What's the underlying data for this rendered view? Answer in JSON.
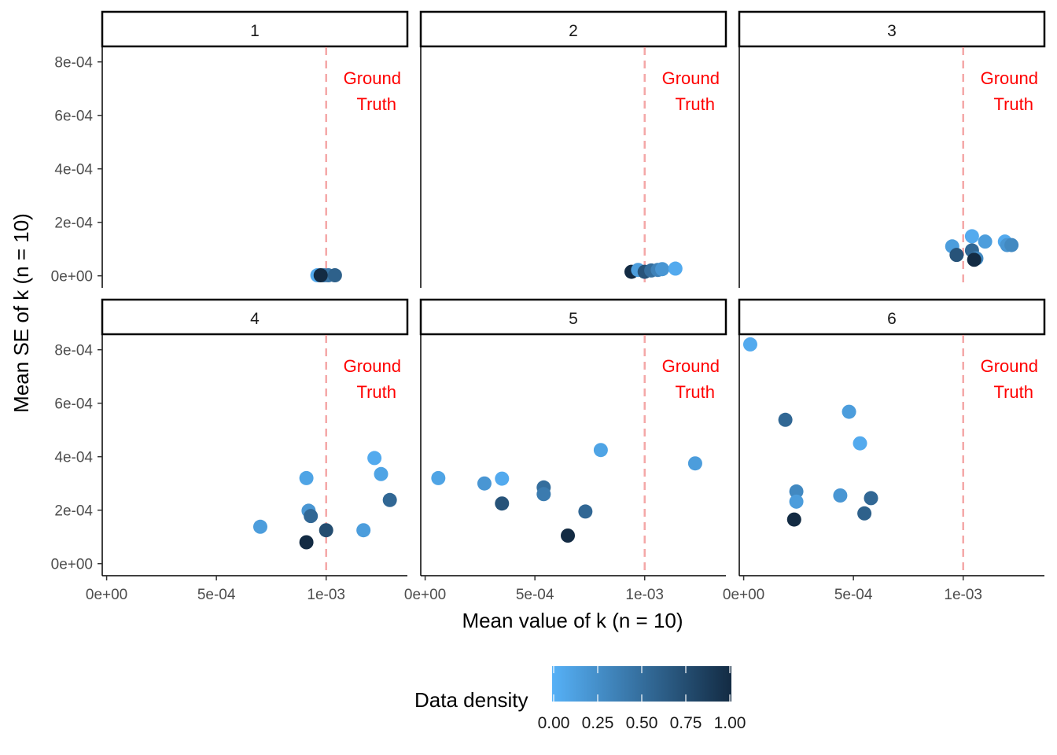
{
  "chart_data": {
    "type": "scatter",
    "facet_layout": "2x3",
    "xlabel": "Mean value of k (n = 10)",
    "ylabel": "Mean SE of k (n = 10)",
    "xlim": [
      -2e-05,
      0.00137
    ],
    "ylim": [
      -4.5e-05,
      0.000855
    ],
    "x_ticks": [
      {
        "value": 0,
        "label": "0e+00"
      },
      {
        "value": 0.0005,
        "label": "5e-04"
      },
      {
        "value": 0.001,
        "label": "1e-03"
      }
    ],
    "y_ticks": [
      {
        "value": 0,
        "label": "0e+00"
      },
      {
        "value": 0.0002,
        "label": "2e-04"
      },
      {
        "value": 0.0004,
        "label": "4e-04"
      },
      {
        "value": 0.0006,
        "label": "6e-04"
      },
      {
        "value": 0.0008,
        "label": "8e-04"
      }
    ],
    "grid": false,
    "reference_line": {
      "x": 0.001,
      "label_line1": "Ground",
      "label_line2": "Truth",
      "color": "#FF0000",
      "line_color": "#F4A7A7"
    },
    "color_scale": {
      "title": "Data density",
      "low": "#56B1F7",
      "high": "#132B43",
      "ticks": [
        "0.00",
        "0.25",
        "0.50",
        "0.75",
        "1.00"
      ],
      "placement": "bottom"
    },
    "facets": [
      {
        "label": "1",
        "points": [
          {
            "x": 0.00096,
            "y": 2e-06,
            "d": 0.05
          },
          {
            "x": 0.00099,
            "y": 2e-06,
            "d": 0.35
          },
          {
            "x": 0.00101,
            "y": 2e-06,
            "d": 0.45
          },
          {
            "x": 0.00104,
            "y": 2e-06,
            "d": 0.6
          },
          {
            "x": 0.000975,
            "y": 2e-06,
            "d": 1.0
          }
        ]
      },
      {
        "label": "2",
        "points": [
          {
            "x": 0.00094,
            "y": 1.5e-05,
            "d": 1.0
          },
          {
            "x": 0.00097,
            "y": 2.2e-05,
            "d": 0.15
          },
          {
            "x": 0.001,
            "y": 1.5e-05,
            "d": 0.7
          },
          {
            "x": 0.00103,
            "y": 2e-05,
            "d": 0.5
          },
          {
            "x": 0.00106,
            "y": 2.2e-05,
            "d": 0.35
          },
          {
            "x": 0.00108,
            "y": 2.5e-05,
            "d": 0.2
          },
          {
            "x": 0.00114,
            "y": 2.7e-05,
            "d": 0.05
          }
        ]
      },
      {
        "label": "3",
        "points": [
          {
            "x": 0.00095,
            "y": 0.00011,
            "d": 0.15
          },
          {
            "x": 0.00097,
            "y": 7.8e-05,
            "d": 0.7
          },
          {
            "x": 0.00104,
            "y": 0.000148,
            "d": 0.05
          },
          {
            "x": 0.00104,
            "y": 9.5e-05,
            "d": 0.55
          },
          {
            "x": 0.00106,
            "y": 6.5e-05,
            "d": 0.3
          },
          {
            "x": 0.00105,
            "y": 6e-05,
            "d": 1.0
          },
          {
            "x": 0.0011,
            "y": 0.000128,
            "d": 0.15
          },
          {
            "x": 0.00119,
            "y": 0.000128,
            "d": 0.05
          },
          {
            "x": 0.0012,
            "y": 0.000115,
            "d": 0.2
          },
          {
            "x": 0.00122,
            "y": 0.000115,
            "d": 0.3
          }
        ]
      },
      {
        "label": "4",
        "points": [
          {
            "x": 0.0007,
            "y": 0.000138,
            "d": 0.15
          },
          {
            "x": 0.00091,
            "y": 0.00032,
            "d": 0.1
          },
          {
            "x": 0.00092,
            "y": 0.000198,
            "d": 0.2
          },
          {
            "x": 0.00093,
            "y": 0.000178,
            "d": 0.55
          },
          {
            "x": 0.00091,
            "y": 8e-05,
            "d": 1.0
          },
          {
            "x": 0.001,
            "y": 0.000125,
            "d": 0.75
          },
          {
            "x": 0.00117,
            "y": 0.000125,
            "d": 0.15
          },
          {
            "x": 0.00122,
            "y": 0.000395,
            "d": 0.05
          },
          {
            "x": 0.00125,
            "y": 0.000335,
            "d": 0.1
          },
          {
            "x": 0.00129,
            "y": 0.000238,
            "d": 0.55
          }
        ]
      },
      {
        "label": "5",
        "points": [
          {
            "x": 6e-05,
            "y": 0.00032,
            "d": 0.1
          },
          {
            "x": 0.00027,
            "y": 0.0003,
            "d": 0.2
          },
          {
            "x": 0.00035,
            "y": 0.000318,
            "d": 0.05
          },
          {
            "x": 0.00035,
            "y": 0.000225,
            "d": 0.7
          },
          {
            "x": 0.00054,
            "y": 0.000285,
            "d": 0.5
          },
          {
            "x": 0.00054,
            "y": 0.00026,
            "d": 0.4
          },
          {
            "x": 0.00065,
            "y": 0.000105,
            "d": 1.0
          },
          {
            "x": 0.00073,
            "y": 0.000195,
            "d": 0.55
          },
          {
            "x": 0.0008,
            "y": 0.000425,
            "d": 0.1
          },
          {
            "x": 0.00123,
            "y": 0.000375,
            "d": 0.15
          }
        ]
      },
      {
        "label": "6",
        "points": [
          {
            "x": 3e-05,
            "y": 0.00082,
            "d": 0.05
          },
          {
            "x": 0.00019,
            "y": 0.000538,
            "d": 0.55
          },
          {
            "x": 0.00024,
            "y": 0.00027,
            "d": 0.3
          },
          {
            "x": 0.00024,
            "y": 0.000232,
            "d": 0.15
          },
          {
            "x": 0.00023,
            "y": 0.000165,
            "d": 1.0
          },
          {
            "x": 0.00044,
            "y": 0.000255,
            "d": 0.2
          },
          {
            "x": 0.00048,
            "y": 0.000568,
            "d": 0.15
          },
          {
            "x": 0.00053,
            "y": 0.00045,
            "d": 0.05
          },
          {
            "x": 0.00055,
            "y": 0.000188,
            "d": 0.6
          },
          {
            "x": 0.00058,
            "y": 0.000245,
            "d": 0.55
          }
        ]
      }
    ]
  }
}
